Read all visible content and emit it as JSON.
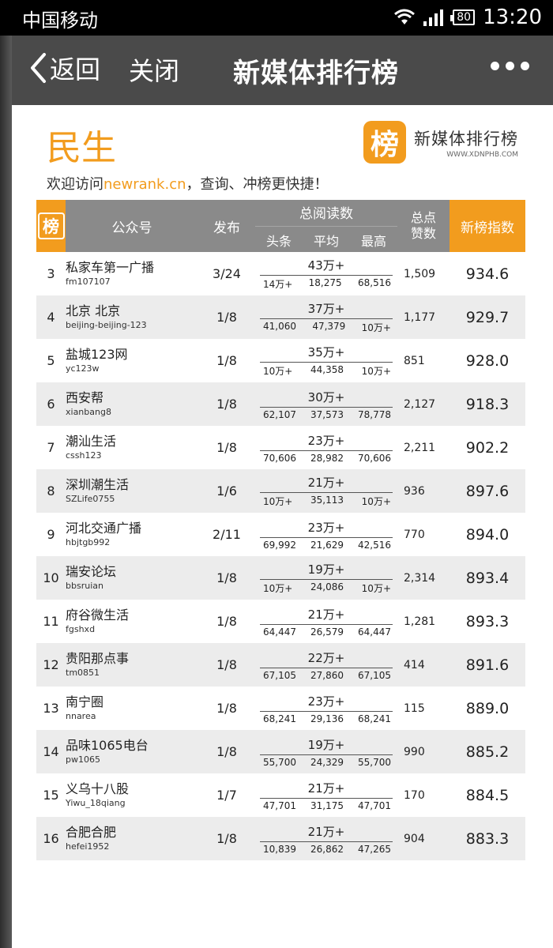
{
  "status_bar": {
    "carrier": "中国移动",
    "battery": "80",
    "time": "13:20"
  },
  "nav": {
    "back_label": "返回",
    "close_label": "关闭",
    "title": "新媒体排行榜"
  },
  "header": {
    "category": "民生",
    "logo_mark": "榜",
    "logo_name": "新媒体排行榜",
    "logo_url": "WWW.XDNPHB.COM",
    "welcome_prefix": "欢迎访问",
    "welcome_link": "newrank.cn",
    "welcome_suffix": "，查询、冲榜更快捷！"
  },
  "table": {
    "headers": {
      "rank_icon": "榜",
      "account": "公众号",
      "publish": "发布",
      "total_reads": "总阅读数",
      "headline": "头条",
      "average": "平均",
      "max": "最高",
      "likes": "总点赞数",
      "index": "新榜指数"
    },
    "rows": [
      {
        "rank": "3",
        "name": "私家车第一广播",
        "id": "fm107107",
        "date": "3/24",
        "total": "43万+",
        "headline": "14万+",
        "average": "18,275",
        "max": "68,516",
        "likes": "1,509",
        "index": "934.6"
      },
      {
        "rank": "4",
        "name": "北京 北京",
        "id": "beijing-beijing-123",
        "date": "1/8",
        "total": "37万+",
        "headline": "41,060",
        "average": "47,379",
        "max": "10万+",
        "likes": "1,177",
        "index": "929.7"
      },
      {
        "rank": "5",
        "name": "盐城123网",
        "id": "yc123w",
        "date": "1/8",
        "total": "35万+",
        "headline": "10万+",
        "average": "44,358",
        "max": "10万+",
        "likes": "851",
        "index": "928.0"
      },
      {
        "rank": "6",
        "name": "西安帮",
        "id": "xianbang8",
        "date": "1/8",
        "total": "30万+",
        "headline": "62,107",
        "average": "37,573",
        "max": "78,778",
        "likes": "2,127",
        "index": "918.3"
      },
      {
        "rank": "7",
        "name": "潮汕生活",
        "id": "cssh123",
        "date": "1/8",
        "total": "23万+",
        "headline": "70,606",
        "average": "28,982",
        "max": "70,606",
        "likes": "2,211",
        "index": "902.2"
      },
      {
        "rank": "8",
        "name": "深圳潮生活",
        "id": "SZLife0755",
        "date": "1/6",
        "total": "21万+",
        "headline": "10万+",
        "average": "35,113",
        "max": "10万+",
        "likes": "936",
        "index": "897.6"
      },
      {
        "rank": "9",
        "name": "河北交通广播",
        "id": "hbjtgb992",
        "date": "2/11",
        "total": "23万+",
        "headline": "69,992",
        "average": "21,629",
        "max": "42,516",
        "likes": "770",
        "index": "894.0"
      },
      {
        "rank": "10",
        "name": "瑞安论坛",
        "id": "bbsruian",
        "date": "1/8",
        "total": "19万+",
        "headline": "10万+",
        "average": "24,086",
        "max": "10万+",
        "likes": "2,314",
        "index": "893.4"
      },
      {
        "rank": "11",
        "name": "府谷微生活",
        "id": "fgshxd",
        "date": "1/8",
        "total": "21万+",
        "headline": "64,447",
        "average": "26,579",
        "max": "64,447",
        "likes": "1,281",
        "index": "893.3"
      },
      {
        "rank": "12",
        "name": "贵阳那点事",
        "id": "tm0851",
        "date": "1/8",
        "total": "22万+",
        "headline": "67,105",
        "average": "27,860",
        "max": "67,105",
        "likes": "414",
        "index": "891.6"
      },
      {
        "rank": "13",
        "name": "南宁圈",
        "id": "nnarea",
        "date": "1/8",
        "total": "23万+",
        "headline": "68,241",
        "average": "29,136",
        "max": "68,241",
        "likes": "115",
        "index": "889.0"
      },
      {
        "rank": "14",
        "name": "品味1065电台",
        "id": "pw1065",
        "date": "1/8",
        "total": "19万+",
        "headline": "55,700",
        "average": "24,329",
        "max": "55,700",
        "likes": "990",
        "index": "885.2"
      },
      {
        "rank": "15",
        "name": "义乌十八股",
        "id": "Yiwu_18qiang",
        "date": "1/7",
        "total": "21万+",
        "headline": "47,701",
        "average": "31,175",
        "max": "47,701",
        "likes": "170",
        "index": "884.5"
      },
      {
        "rank": "16",
        "name": "合肥合肥",
        "id": "hefei1952",
        "date": "1/8",
        "total": "21万+",
        "headline": "10,839",
        "average": "26,862",
        "max": "47,265",
        "likes": "904",
        "index": "883.3"
      }
    ]
  },
  "colors": {
    "accent": "#f29c1e",
    "header_gray": "#8a8a8a",
    "nav_bg": "#4a4a4a"
  }
}
